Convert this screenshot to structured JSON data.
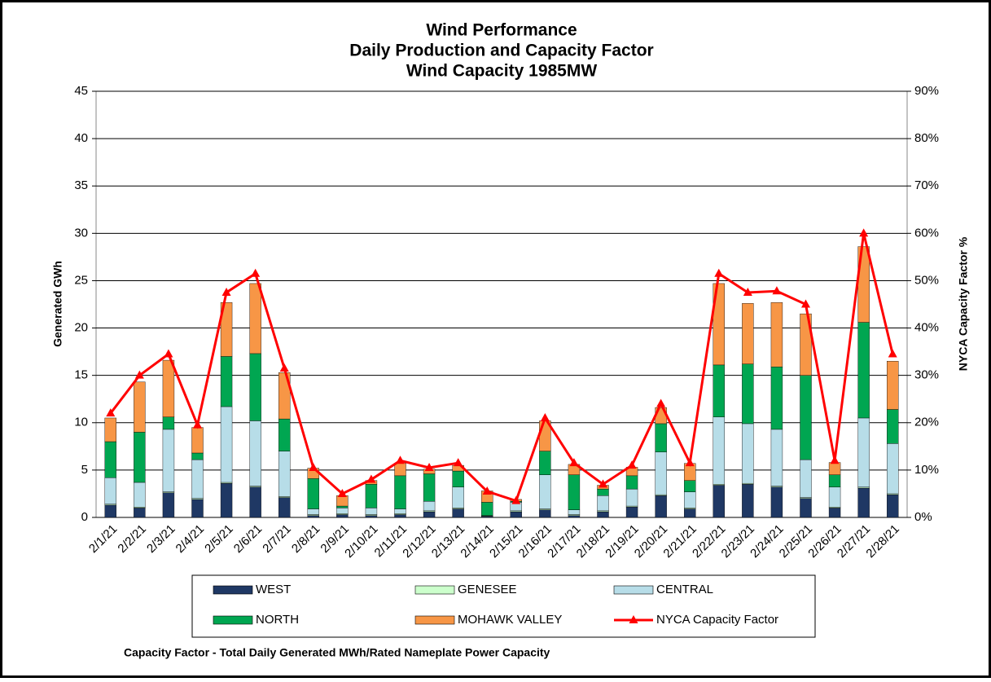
{
  "chart_data": {
    "type": "stacked-bar-line",
    "title": "Wind Performance",
    "subtitle": [
      "Daily Production and Capacity Factor",
      "Wind Capacity 1985MW"
    ],
    "y_label": "Generated GWh",
    "y2_label": "NYCA Capacity Factor %",
    "annotation": "Capacity Factor  - Total Daily Generated MWh/Rated Nameplate Power Capacity",
    "categories": [
      "2/1/21",
      "2/2/21",
      "2/3/21",
      "2/4/21",
      "2/5/21",
      "2/6/21",
      "2/7/21",
      "2/8/21",
      "2/9/21",
      "2/10/21",
      "2/11/21",
      "2/12/21",
      "2/13/21",
      "2/14/21",
      "2/15/21",
      "2/16/21",
      "2/17/21",
      "2/18/21",
      "2/19/21",
      "2/20/21",
      "2/21/21",
      "2/22/21",
      "2/23/21",
      "2/24/21",
      "2/25/21",
      "2/26/21",
      "2/27/21",
      "2/28/21"
    ],
    "ylim": [
      0,
      45
    ],
    "yticks": [
      0,
      5,
      10,
      15,
      20,
      25,
      30,
      35,
      40,
      45
    ],
    "y2lim": [
      0,
      90
    ],
    "y2ticks": [
      {
        "value": 0,
        "label": "0%"
      },
      {
        "value": 10,
        "label": "10%"
      },
      {
        "value": 20,
        "label": "20%"
      },
      {
        "value": 30,
        "label": "30%"
      },
      {
        "value": 40,
        "label": "40%"
      },
      {
        "value": 50,
        "label": "50%"
      },
      {
        "value": 60,
        "label": "60%"
      },
      {
        "value": 70,
        "label": "70%"
      },
      {
        "value": 80,
        "label": "80%"
      },
      {
        "value": 90,
        "label": "90%"
      }
    ],
    "grid": true,
    "series": [
      {
        "name": "WEST",
        "color": "#1f3864",
        "values": [
          1.3,
          1.0,
          2.6,
          1.9,
          3.6,
          3.2,
          2.1,
          0.2,
          0.3,
          0.2,
          0.3,
          0.6,
          0.9,
          0.1,
          0.6,
          0.8,
          0.2,
          0.6,
          1.1,
          2.3,
          0.9,
          3.4,
          3.5,
          3.2,
          2.0,
          1.0,
          3.1,
          2.4
        ]
      },
      {
        "name": "GENESEE",
        "color": "#ccffcc",
        "values": [
          0.1,
          0.1,
          0.1,
          0.1,
          0.1,
          0.1,
          0.1,
          0.1,
          0.1,
          0.1,
          0.1,
          0.1,
          0.1,
          0.05,
          0.1,
          0.1,
          0.1,
          0.1,
          0.1,
          0.1,
          0.1,
          0.1,
          0.1,
          0.1,
          0.1,
          0.1,
          0.1,
          0.1
        ]
      },
      {
        "name": "CENTRAL",
        "color": "#b7dde8",
        "values": [
          2.8,
          2.6,
          6.6,
          4.1,
          8.0,
          6.9,
          4.8,
          0.6,
          0.6,
          0.7,
          0.5,
          1.0,
          2.2,
          0.05,
          0.9,
          3.6,
          0.5,
          1.6,
          1.8,
          4.5,
          1.7,
          7.1,
          6.3,
          6.0,
          4.0,
          2.1,
          7.3,
          5.3
        ]
      },
      {
        "name": "NORTH",
        "color": "#00a651",
        "values": [
          3.8,
          5.3,
          1.3,
          0.7,
          5.3,
          7.1,
          3.4,
          3.2,
          0.2,
          2.5,
          3.5,
          2.9,
          1.7,
          1.4,
          0.1,
          2.5,
          3.7,
          0.7,
          1.4,
          3.0,
          1.2,
          5.5,
          6.3,
          6.6,
          8.9,
          1.3,
          10.1,
          3.6
        ]
      },
      {
        "name": "MOHAWK VALLEY",
        "color": "#f79646",
        "values": [
          2.5,
          5.3,
          6.0,
          2.7,
          5.7,
          7.4,
          4.9,
          1.1,
          1.1,
          0.4,
          1.3,
          0.5,
          0.6,
          1.2,
          0.2,
          3.2,
          1.1,
          0.4,
          0.9,
          1.7,
          1.8,
          8.6,
          6.4,
          6.8,
          6.5,
          1.3,
          8.0,
          5.1
        ]
      },
      {
        "name": "NYCA Capacity Factor",
        "color": "#ff0000",
        "axis": "y2",
        "values": [
          22,
          30,
          34.5,
          19.5,
          47.5,
          51.5,
          31.5,
          10.5,
          5,
          8,
          12,
          10.5,
          11.5,
          5.5,
          3.5,
          21,
          11.5,
          7,
          11,
          24,
          11.5,
          51.5,
          47.5,
          47.8,
          45,
          12,
          60,
          34.5
        ]
      }
    ]
  }
}
